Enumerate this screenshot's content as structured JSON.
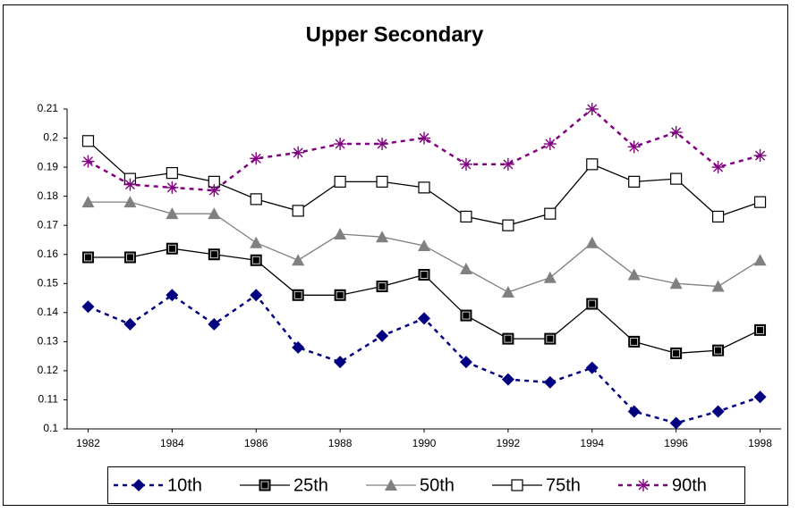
{
  "chart_data": {
    "type": "line",
    "title": "Upper Secondary",
    "x": [
      1982,
      1983,
      1984,
      1985,
      1986,
      1987,
      1988,
      1989,
      1990,
      1991,
      1992,
      1993,
      1994,
      1995,
      1996,
      1997,
      1998
    ],
    "xlim": [
      1981.5,
      1998.5
    ],
    "xticks": [
      1982,
      1984,
      1986,
      1988,
      1990,
      1992,
      1994,
      1996,
      1998
    ],
    "ylim": [
      0.1,
      0.21
    ],
    "yticks": [
      0.1,
      0.11,
      0.12,
      0.13,
      0.14,
      0.15,
      0.16,
      0.17,
      0.18,
      0.19,
      0.2,
      0.21
    ],
    "legend": "bottom",
    "series": [
      {
        "name": "10th",
        "color": "#000080",
        "marker": "diamond",
        "dashed": true,
        "values": [
          0.142,
          0.136,
          0.146,
          0.136,
          0.146,
          0.128,
          0.123,
          0.132,
          0.138,
          0.123,
          0.117,
          0.116,
          0.121,
          0.106,
          0.102,
          0.106,
          0.111
        ]
      },
      {
        "name": "25th",
        "color": "#000000",
        "marker": "filled-square",
        "dashed": false,
        "values": [
          0.159,
          0.159,
          0.162,
          0.16,
          0.158,
          0.146,
          0.146,
          0.149,
          0.153,
          0.139,
          0.131,
          0.131,
          0.143,
          0.13,
          0.126,
          0.127,
          0.134
        ]
      },
      {
        "name": "50th",
        "color": "#808080",
        "marker": "triangle",
        "dashed": false,
        "values": [
          0.178,
          0.178,
          0.174,
          0.174,
          0.164,
          0.158,
          0.167,
          0.166,
          0.163,
          0.155,
          0.147,
          0.152,
          0.164,
          0.153,
          0.15,
          0.149,
          0.158
        ]
      },
      {
        "name": "75th",
        "color": "#000000",
        "marker": "open-square",
        "dashed": false,
        "values": [
          0.199,
          0.186,
          0.188,
          0.185,
          0.179,
          0.175,
          0.185,
          0.185,
          0.183,
          0.173,
          0.17,
          0.174,
          0.191,
          0.185,
          0.186,
          0.173,
          0.178
        ]
      },
      {
        "name": "90th",
        "color": "#800080",
        "marker": "asterisk",
        "dashed": true,
        "values": [
          0.192,
          0.184,
          0.183,
          0.182,
          0.193,
          0.195,
          0.198,
          0.198,
          0.2,
          0.191,
          0.191,
          0.198,
          0.21,
          0.197,
          0.202,
          0.19,
          0.194
        ]
      }
    ]
  }
}
